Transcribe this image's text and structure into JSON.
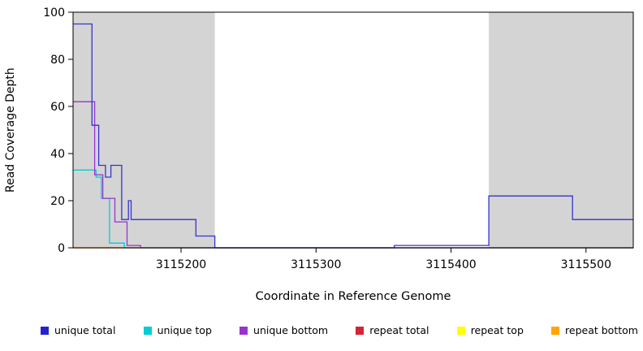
{
  "chart_data": {
    "type": "line",
    "title": "",
    "xlabel": "Coordinate in Reference Genome",
    "ylabel": "Read Coverage Depth",
    "x_domain": [
      3115120,
      3115535
    ],
    "y_domain": [
      0,
      100
    ],
    "x_ticks": [
      3115200,
      3115300,
      3115400,
      3115500
    ],
    "y_ticks": [
      0,
      20,
      40,
      60,
      80,
      100
    ],
    "grid": false,
    "shade_color": "#d4d4d4",
    "shaded_regions": [
      {
        "x0": 3115120,
        "x1": 3115225
      },
      {
        "x0": 3115428,
        "x1": 3115535
      }
    ],
    "series": [
      {
        "name": "repeat top",
        "color": "#ffff00",
        "points": [
          [
            3115120,
            0
          ],
          [
            3115535,
            0
          ]
        ]
      },
      {
        "name": "repeat total",
        "color": "#d42438",
        "points": [
          [
            3115120,
            0
          ],
          [
            3115535,
            0
          ]
        ]
      },
      {
        "name": "unique top",
        "color": "#00ced1",
        "points": [
          [
            3115120,
            33
          ],
          [
            3115137,
            33
          ],
          [
            3115137,
            30
          ],
          [
            3115141,
            30
          ],
          [
            3115141,
            21
          ],
          [
            3115147,
            21
          ],
          [
            3115147,
            2
          ],
          [
            3115158,
            2
          ],
          [
            3115158,
            0
          ],
          [
            3115535,
            0
          ]
        ]
      },
      {
        "name": "unique bottom",
        "color": "#9932cc",
        "points": [
          [
            3115120,
            62
          ],
          [
            3115136,
            62
          ],
          [
            3115136,
            31
          ],
          [
            3115142,
            31
          ],
          [
            3115142,
            21
          ],
          [
            3115151,
            21
          ],
          [
            3115151,
            11
          ],
          [
            3115160,
            11
          ],
          [
            3115160,
            1
          ],
          [
            3115170,
            1
          ],
          [
            3115170,
            0
          ],
          [
            3115535,
            0
          ]
        ]
      },
      {
        "name": "unique total",
        "color": "#3434d0",
        "points": [
          [
            3115120,
            95
          ],
          [
            3115134,
            95
          ],
          [
            3115134,
            52
          ],
          [
            3115139,
            52
          ],
          [
            3115139,
            35
          ],
          [
            3115144,
            35
          ],
          [
            3115144,
            30
          ],
          [
            3115148,
            30
          ],
          [
            3115148,
            35
          ],
          [
            3115156,
            35
          ],
          [
            3115156,
            12
          ],
          [
            3115161,
            12
          ],
          [
            3115161,
            20
          ],
          [
            3115163,
            20
          ],
          [
            3115163,
            12
          ],
          [
            3115211,
            12
          ],
          [
            3115211,
            5
          ],
          [
            3115225,
            5
          ],
          [
            3115225,
            0
          ],
          [
            3115358,
            0
          ],
          [
            3115358,
            1
          ],
          [
            3115428,
            1
          ],
          [
            3115428,
            22
          ],
          [
            3115490,
            22
          ],
          [
            3115490,
            12
          ],
          [
            3115535,
            12
          ]
        ]
      },
      {
        "name": "repeat bottom",
        "color": "#ffa500",
        "points": [
          [
            3115120,
            0
          ],
          [
            3115172,
            0
          ]
        ]
      }
    ],
    "legend": {
      "position": "bottom",
      "entries": [
        {
          "label": "unique total",
          "color": "#2323cd"
        },
        {
          "label": "unique top",
          "color": "#00ced1"
        },
        {
          "label": "unique bottom",
          "color": "#9932cc"
        },
        {
          "label": "repeat total",
          "color": "#d42438"
        },
        {
          "label": "repeat top",
          "color": "#ffff00"
        },
        {
          "label": "repeat bottom",
          "color": "#ffa500"
        }
      ]
    }
  }
}
